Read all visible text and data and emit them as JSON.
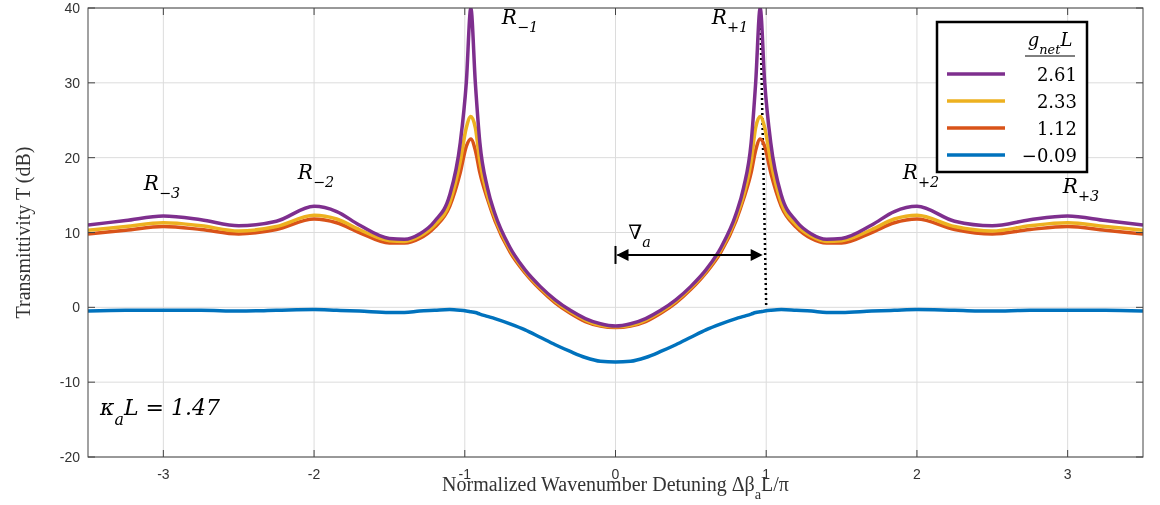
{
  "chart_data": {
    "type": "line",
    "xlabel": "Normalized Wavenumber Detuning Δβ$_{a}$L/π",
    "ylabel": "Transmittivity T (dB)",
    "legend_title": "g$_{net}$L",
    "legend": "top right",
    "grid": true,
    "line_style": "solid",
    "xlim": [
      -3.5,
      3.5
    ],
    "ylim": [
      -20,
      40
    ],
    "xticks": [
      -3,
      -2,
      -1,
      0,
      1,
      2,
      3
    ],
    "yticks": [
      -20,
      -10,
      0,
      10,
      20,
      30,
      40
    ],
    "x": [
      -3.5,
      -3.25,
      -3,
      -2.75,
      -2.5,
      -2.25,
      -2,
      -1.85,
      -1.7,
      -1.5,
      -1.4,
      -1.3,
      -1.2,
      -1.1,
      -1.03,
      -0.99,
      -0.96,
      -0.93,
      -0.9,
      -0.85,
      -0.8,
      -0.7,
      -0.6,
      -0.5,
      -0.4,
      -0.3,
      -0.2,
      -0.1,
      0,
      0.1,
      0.2,
      0.3,
      0.4,
      0.5,
      0.6,
      0.7,
      0.8,
      0.85,
      0.9,
      0.93,
      0.96,
      0.99,
      1.03,
      1.1,
      1.2,
      1.3,
      1.4,
      1.5,
      1.7,
      1.85,
      2,
      2.25,
      2.5,
      2.75,
      3,
      3.25,
      3.5
    ],
    "series": [
      {
        "name": "2.61",
        "color": "#7e2f8e",
        "values": [
          11,
          11.6,
          12.2,
          11.7,
          10.9,
          11.5,
          13.5,
          12.8,
          11,
          9.2,
          9.1,
          9.8,
          11.5,
          15,
          22,
          30,
          40,
          30,
          22,
          16,
          12.5,
          8,
          5,
          2.8,
          1,
          -0.4,
          -1.5,
          -2.2,
          -2.5,
          -2.2,
          -1.5,
          -0.4,
          1,
          2.8,
          5,
          8,
          12.5,
          16,
          22,
          30,
          40,
          30,
          22,
          15,
          11.5,
          9.8,
          9.1,
          9.2,
          11,
          12.8,
          13.5,
          11.5,
          10.9,
          11.7,
          12.2,
          11.6,
          11
        ]
      },
      {
        "name": "2.33",
        "color": "#edb120",
        "values": [
          10.3,
          10.8,
          11.3,
          10.9,
          10.2,
          10.8,
          12.3,
          11.8,
          10.4,
          8.9,
          8.8,
          9.5,
          11,
          14,
          19.5,
          24,
          25.5,
          24,
          19.5,
          15,
          12,
          7.7,
          4.8,
          2.6,
          0.8,
          -0.6,
          -1.7,
          -2.4,
          -2.6,
          -2.4,
          -1.7,
          -0.6,
          0.8,
          2.6,
          4.8,
          7.7,
          12,
          15,
          19.5,
          24,
          25.5,
          24,
          19.5,
          14,
          11,
          9.5,
          8.8,
          8.9,
          10.4,
          11.8,
          12.3,
          10.8,
          10.2,
          10.9,
          11.3,
          10.8,
          10.3
        ]
      },
      {
        "name": "1.12",
        "color": "#d95319",
        "values": [
          9.8,
          10.3,
          10.8,
          10.4,
          9.8,
          10.4,
          11.8,
          11.3,
          10,
          8.6,
          8.6,
          9.2,
          10.7,
          13.5,
          18,
          21.5,
          22.5,
          21,
          18,
          14.5,
          11.6,
          7.4,
          4.6,
          2.4,
          0.6,
          -0.8,
          -1.9,
          -2.5,
          -2.7,
          -2.5,
          -1.9,
          -0.8,
          0.6,
          2.4,
          4.6,
          7.4,
          11.6,
          14.5,
          18,
          21,
          22.5,
          21.5,
          18,
          13.5,
          10.7,
          9.2,
          8.6,
          8.6,
          10,
          11.3,
          11.8,
          10.4,
          9.8,
          10.4,
          10.8,
          10.3,
          9.8
        ]
      },
      {
        "name": "−0.09",
        "color": "#0072bd",
        "values": [
          -0.5,
          -0.4,
          -0.4,
          -0.4,
          -0.5,
          -0.4,
          -0.3,
          -0.4,
          -0.5,
          -0.7,
          -0.7,
          -0.5,
          -0.4,
          -0.3,
          -0.4,
          -0.5,
          -0.6,
          -0.7,
          -0.9,
          -1.2,
          -1.5,
          -2.2,
          -3,
          -4,
          -5,
          -5.9,
          -6.7,
          -7.2,
          -7.3,
          -7.2,
          -6.7,
          -5.9,
          -5,
          -4,
          -3,
          -2.2,
          -1.5,
          -1.2,
          -0.9,
          -0.7,
          -0.6,
          -0.5,
          -0.4,
          -0.3,
          -0.4,
          -0.5,
          -0.7,
          -0.7,
          -0.5,
          -0.4,
          -0.3,
          -0.4,
          -0.5,
          -0.4,
          -0.4,
          -0.4,
          -0.5
        ]
      },
      {
        "type": "line",
        "line_style": "dotted",
        "color": "#000000",
        "x": [
          0.96,
          1.0
        ],
        "values": [
          40,
          0
        ]
      }
    ],
    "annotations": [
      "R$_{−3}$",
      "R$_{−2}$",
      "R$_{−1}$",
      "R$_{+1}$",
      "R$_{+2}$",
      "R$_{+3}$",
      {
        "text": "∇$_{a}$",
        "x": 0.99,
        "y": 7
      },
      "κ$_{a}$L = 1.47"
    ]
  }
}
